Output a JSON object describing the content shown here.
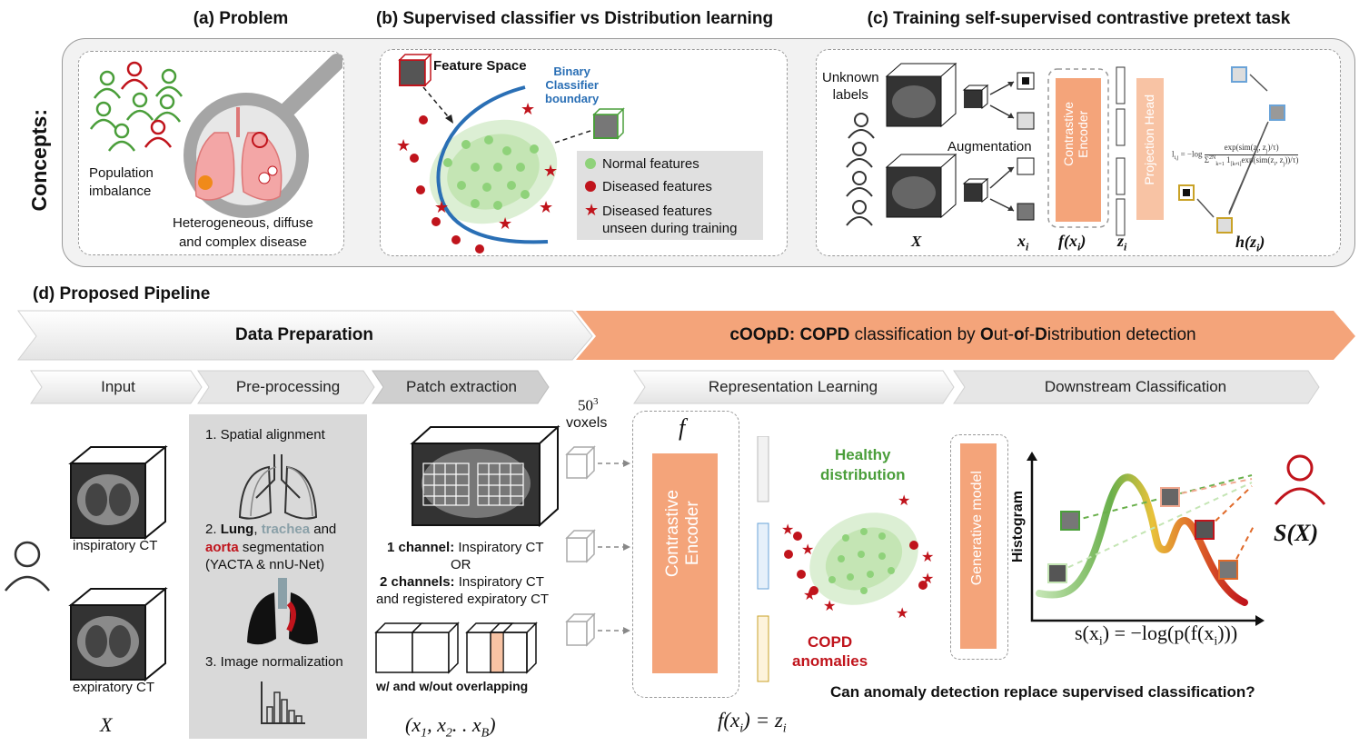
{
  "concepts_label": "Concepts:",
  "panel_a": {
    "title": "(a) Problem",
    "population": "Population\nimbalance",
    "disease": "Heterogeneous, diffuse\nand complex disease"
  },
  "panel_b": {
    "title": "(b) Supervised classifier vs Distribution learning",
    "feature_space": "Feature Space",
    "boundary": "Binary\nClassifier\nboundary",
    "legend": [
      {
        "label": "Normal features",
        "color": "#8fd27a"
      },
      {
        "label": "Diseased features",
        "color": "#c0141c"
      },
      {
        "label": "Diseased features\nunseen during training",
        "color": "#c0141c"
      }
    ]
  },
  "panel_c": {
    "title": "(c) Training self-supervised contrastive pretext task",
    "unknown_labels": "Unknown\nlabels",
    "augmentation": "Augmentation",
    "encoder": "Contrastive\nEncoder",
    "projection": "Projection Head",
    "var_x": "X",
    "var_xi": "x",
    "sub_i": "i",
    "var_fxi": "f(x",
    "var_zi": "z",
    "var_hzi": "h(z",
    "loss_lhs": "l",
    "loss_rhs": "= −log",
    "loss_num": "exp(sim(z",
    "loss_num_tail": ", z",
    "loss_num_end": ")/τ)",
    "loss_den": "Σ",
    "loss_den_mid": "1",
    "loss_den_tail": "exp(sim(z",
    "loss_den_end": "))/τ)"
  },
  "panel_d": {
    "title": "(d) Proposed Pipeline",
    "data_prep": "Data Preparation",
    "coopd_prefix": "cOOpD: ",
    "coopd_bold1": "COPD",
    "coopd_mid": " classification by ",
    "coopd_o": "O",
    "coopd_ut": "ut-",
    "coopd_of": "o",
    "coopd_f": "f-",
    "coopd_d": "D",
    "coopd_end": "istribution detection",
    "stages": [
      "Input",
      "Pre-processing",
      "Patch extraction",
      "Representation Learning",
      "Downstream Classification"
    ],
    "insp_ct": "inspiratory CT",
    "exp_ct": "expiratory CT",
    "var_x": "X",
    "step1": "1. Spatial alignment",
    "step2_num": "2. ",
    "step2_lung": "Lung",
    "step2_comma": ", ",
    "step2_trachea": "trachea",
    "step2_and": " and",
    "step2_aorta": "aorta",
    "step2_seg": " segmentation",
    "step2_tools": "(YACTA & nnU-Net)",
    "step3": "3. Image normalization",
    "ch1_bold": "1 channel:",
    "ch1_text": " Inspiratory CT",
    "or": "OR",
    "ch2_bold": "2 channels:",
    "ch2_text": " Inspiratory CT",
    "ch2_line2": "and registered expiratory CT",
    "overlap": "w/ and w/out overlapping",
    "patches": "(x",
    "voxels_num": "50",
    "voxels_exp": "3",
    "voxels": "voxels",
    "f_label": "f",
    "encoder": "Contrastive\nEncoder",
    "fxi": "f(x",
    "fxi_eq": ") = z",
    "healthy": "Healthy\ndistribution",
    "copd": "COPD\nanomalies",
    "generative": "Generative model",
    "histogram": "Histogram",
    "score": "S(X)",
    "score_formula": "s(x",
    "score_formula_tail": ") =  −log(p(f(x",
    "score_formula_end": ")))",
    "question": "Can anomaly detection replace supervised classification?"
  },
  "colors": {
    "orange": "#f4a47a",
    "orange_light": "#f8c3a4",
    "red": "#c0141c",
    "green": "#4a9e3a",
    "blue": "#2a6fb5",
    "gray_box": "#d9d9d9"
  }
}
